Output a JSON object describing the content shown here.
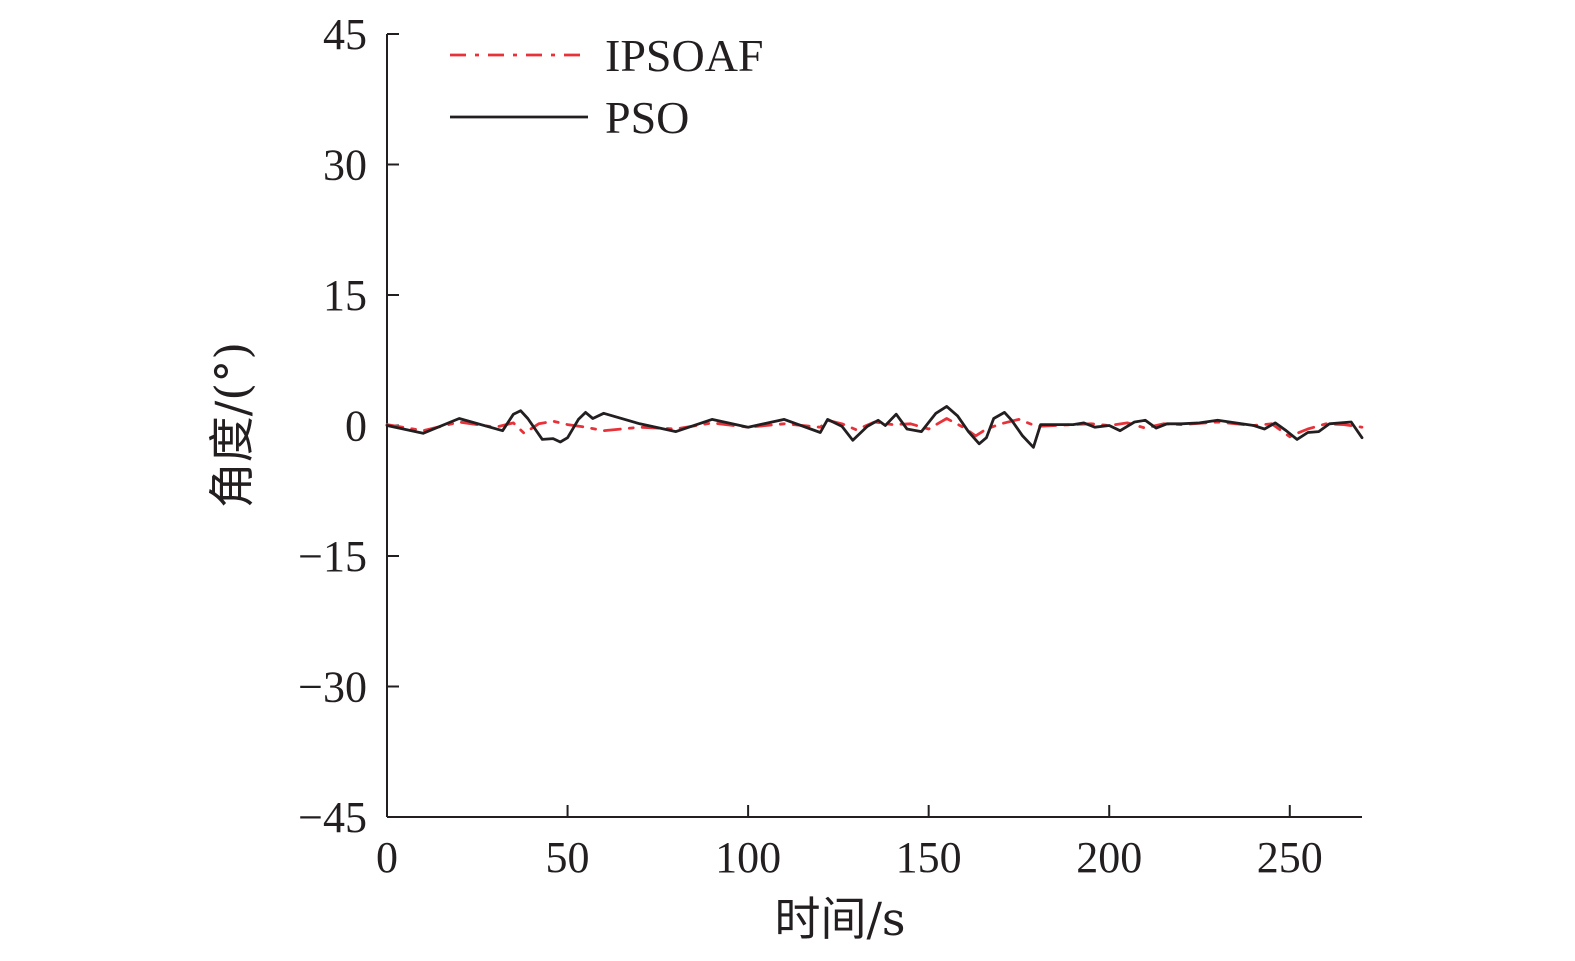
{
  "chart_data": {
    "type": "line",
    "title": "",
    "xlabel": "时间/s",
    "ylabel": "角度/(°)",
    "xlim": [
      0,
      270
    ],
    "ylim": [
      -45,
      45
    ],
    "xticks": [
      0,
      50,
      100,
      150,
      200,
      250
    ],
    "yticks": [
      45,
      30,
      15,
      0,
      -15,
      -30,
      -45
    ],
    "ytick_labels": [
      "45",
      "30",
      "15",
      "0",
      "−15",
      "−30",
      "−45"
    ],
    "grid": false,
    "legend_position": "top-left",
    "series": [
      {
        "name": "IPSOAF",
        "color": "#e8323a",
        "style": "dash-dot",
        "x": [
          0,
          10,
          20,
          30,
          35,
          38,
          42,
          46,
          50,
          55,
          60,
          70,
          80,
          90,
          100,
          110,
          120,
          122,
          126,
          130,
          135,
          140,
          145,
          150,
          155,
          160,
          163,
          166,
          170,
          175,
          180,
          190,
          195,
          200,
          205,
          210,
          215,
          220,
          230,
          240,
          245,
          250,
          252,
          255,
          260,
          265,
          270
        ],
        "y": [
          0.1,
          -0.6,
          0.4,
          -0.2,
          0.3,
          -0.9,
          0.2,
          0.5,
          0.1,
          -0.2,
          -0.6,
          -0.2,
          -0.4,
          0.3,
          -0.2,
          0.2,
          -0.2,
          0.6,
          0.2,
          -0.5,
          0.4,
          0.1,
          0.2,
          -0.4,
          0.8,
          -0.3,
          -1.2,
          -0.4,
          0.2,
          0.7,
          -0.1,
          0.1,
          0.2,
          0.0,
          0.3,
          -0.3,
          0.2,
          0.1,
          0.4,
          0.0,
          0.2,
          -1.3,
          -0.9,
          -0.4,
          0.2,
          0.1,
          -0.2
        ]
      },
      {
        "name": "PSO",
        "color": "#231f20",
        "style": "solid",
        "x": [
          0,
          10,
          20,
          32,
          35,
          37,
          39,
          43,
          46,
          48,
          50,
          53,
          55,
          57,
          60,
          70,
          80,
          90,
          100,
          110,
          120,
          122,
          126,
          129,
          133,
          136,
          138,
          141,
          144,
          148,
          152,
          155,
          158,
          161,
          164,
          166,
          168,
          171,
          173,
          176,
          179,
          181,
          190,
          193,
          196,
          200,
          203,
          207,
          210,
          213,
          216,
          220,
          225,
          230,
          235,
          240,
          243,
          246,
          249,
          252,
          255,
          258,
          261,
          264,
          267,
          270
        ],
        "y": [
          0.0,
          -0.9,
          0.8,
          -0.6,
          1.3,
          1.7,
          0.8,
          -1.6,
          -1.5,
          -1.9,
          -1.4,
          0.7,
          1.5,
          0.8,
          1.4,
          0.2,
          -0.7,
          0.7,
          -0.2,
          0.7,
          -0.8,
          0.7,
          -0.1,
          -1.7,
          -0.1,
          0.6,
          0.0,
          1.3,
          -0.4,
          -0.7,
          1.4,
          2.2,
          1.1,
          -0.7,
          -2.1,
          -1.4,
          0.8,
          1.5,
          0.6,
          -1.2,
          -2.5,
          0.1,
          0.1,
          0.3,
          -0.2,
          0.0,
          -0.6,
          0.4,
          0.6,
          -0.3,
          0.2,
          0.2,
          0.3,
          0.6,
          0.3,
          0.0,
          -0.4,
          0.3,
          -0.6,
          -1.6,
          -0.8,
          -0.7,
          0.2,
          0.3,
          0.4,
          -1.4
        ]
      }
    ]
  }
}
